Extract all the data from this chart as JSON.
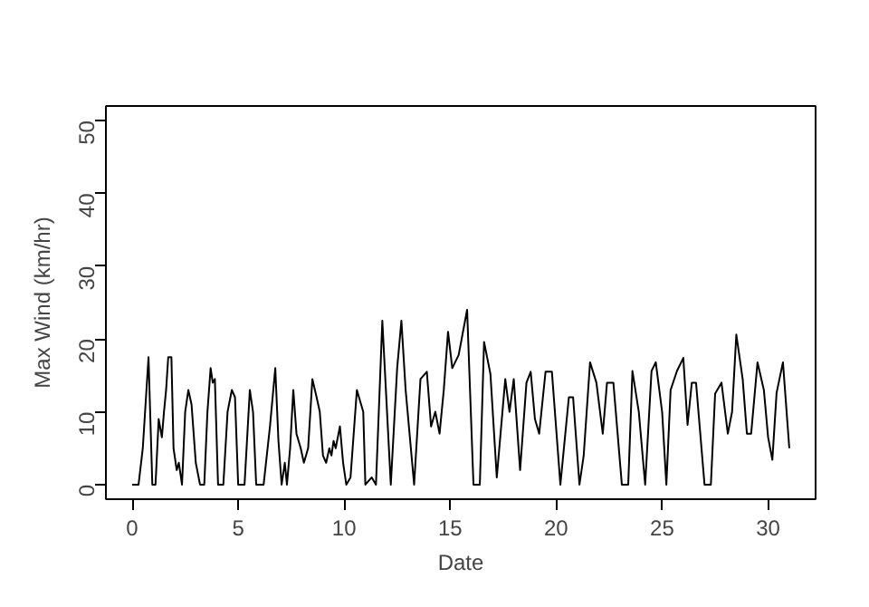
{
  "chart_data": {
    "type": "line",
    "xlabel": "Date",
    "ylabel": "Max Wind (km/hr)",
    "xlim": [
      -1.24,
      32.24
    ],
    "ylim": [
      -2,
      52
    ],
    "xticks": [
      0,
      5,
      10,
      15,
      20,
      25,
      30
    ],
    "yticks": [
      0,
      10,
      20,
      30,
      40,
      50
    ],
    "line_style": "solid",
    "marker": "none",
    "series": [
      {
        "color": "#000000",
        "x": [
          0,
          0.3,
          0.5,
          0.77,
          0.95,
          1.1,
          1.25,
          1.4,
          1.5,
          1.6,
          1.7,
          1.85,
          1.95,
          2.1,
          2.2,
          2.35,
          2.5,
          2.65,
          2.8,
          3.0,
          3.2,
          3.4,
          3.55,
          3.7,
          3.8,
          3.9,
          4.05,
          4.3,
          4.5,
          4.7,
          4.85,
          5.0,
          5.3,
          5.55,
          5.7,
          5.85,
          6.2,
          6.5,
          6.75,
          6.9,
          7.05,
          7.2,
          7.3,
          7.45,
          7.6,
          7.75,
          7.95,
          8.1,
          8.3,
          8.5,
          8.7,
          8.85,
          9.0,
          9.15,
          9.3,
          9.4,
          9.5,
          9.6,
          9.8,
          9.95,
          10.1,
          10.3,
          10.6,
          10.9,
          11.0,
          11.3,
          11.5,
          11.8,
          12.2,
          12.5,
          12.7,
          12.9,
          13.3,
          13.6,
          13.9,
          14.1,
          14.3,
          14.5,
          14.7,
          14.9,
          15.1,
          15.4,
          15.8,
          16.1,
          16.4,
          16.6,
          16.9,
          17.2,
          17.6,
          17.8,
          18.0,
          18.3,
          18.6,
          18.8,
          19.0,
          19.2,
          19.5,
          19.8,
          20.2,
          20.6,
          20.8,
          21.1,
          21.3,
          21.6,
          21.9,
          22.2,
          22.4,
          22.7,
          23.1,
          23.4,
          23.6,
          23.9,
          24.2,
          24.5,
          24.7,
          25.0,
          25.2,
          25.4,
          25.7,
          26.0,
          26.2,
          26.4,
          26.6,
          27.0,
          27.3,
          27.5,
          27.8,
          28.1,
          28.3,
          28.5,
          28.8,
          29.0,
          29.2,
          29.5,
          29.8,
          30.0,
          30.2,
          30.4,
          30.7,
          31.0
        ],
        "values": [
          0,
          0,
          5,
          17.5,
          0,
          0,
          9,
          6.5,
          10,
          13,
          17.5,
          17.5,
          5,
          2,
          3,
          0,
          10,
          13,
          11,
          3,
          0,
          0,
          10,
          16,
          14,
          14.5,
          0,
          0,
          10,
          13,
          12,
          0,
          0,
          13,
          10,
          0,
          0,
          8,
          16,
          6,
          0,
          3,
          0,
          5,
          13,
          7,
          5,
          3,
          5,
          14.5,
          12,
          10,
          4,
          3,
          5,
          4,
          6,
          5,
          8,
          3,
          0,
          1,
          13,
          10,
          0,
          1,
          0,
          22.5,
          0,
          16,
          22.5,
          13,
          0,
          14.5,
          15.5,
          8,
          10,
          7,
          13,
          21,
          16,
          17.8,
          24,
          0,
          0,
          19.6,
          15.2,
          1,
          14.5,
          10,
          14.5,
          2,
          14,
          15.5,
          9,
          7,
          15.5,
          15.5,
          0,
          12,
          12,
          0,
          4,
          16.8,
          14,
          7,
          14,
          14,
          0,
          0,
          15.6,
          10,
          0,
          15.6,
          16.8,
          10,
          0,
          13,
          15.6,
          17.4,
          8.2,
          14,
          14,
          0,
          0,
          12.5,
          14,
          7,
          10,
          20.6,
          14.5,
          7,
          7,
          16.8,
          13,
          6.5,
          3.4,
          12.6,
          16.8,
          5
        ]
      }
    ]
  }
}
